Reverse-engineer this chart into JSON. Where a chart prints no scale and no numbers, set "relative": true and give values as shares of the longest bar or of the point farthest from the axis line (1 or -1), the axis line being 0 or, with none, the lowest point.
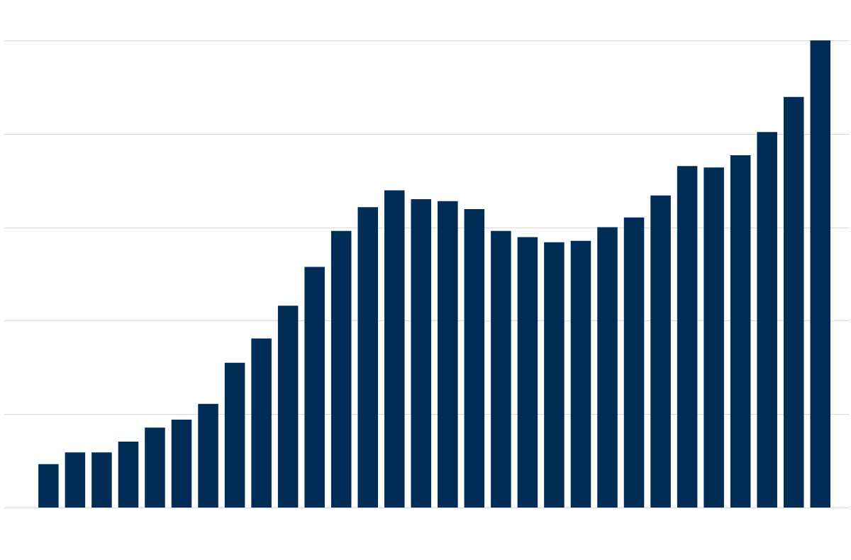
{
  "chart_data": {
    "type": "bar",
    "relative": true,
    "categories": [
      null,
      null,
      null,
      null,
      null,
      null,
      null,
      null,
      null,
      null,
      null,
      null,
      null,
      null,
      null,
      null,
      null,
      null,
      null,
      null,
      null,
      null,
      null,
      null,
      null,
      null,
      null,
      null,
      null,
      null
    ],
    "values": [
      0.093,
      0.118,
      0.118,
      0.141,
      0.171,
      0.188,
      0.222,
      0.31,
      0.362,
      0.432,
      0.515,
      0.592,
      0.643,
      0.679,
      0.66,
      0.656,
      0.639,
      0.592,
      0.579,
      0.568,
      0.571,
      0.6,
      0.621,
      0.668,
      0.731,
      0.728,
      0.754,
      0.804,
      0.879,
      1
    ],
    "color": "#002c55",
    "grid": "y"
  }
}
